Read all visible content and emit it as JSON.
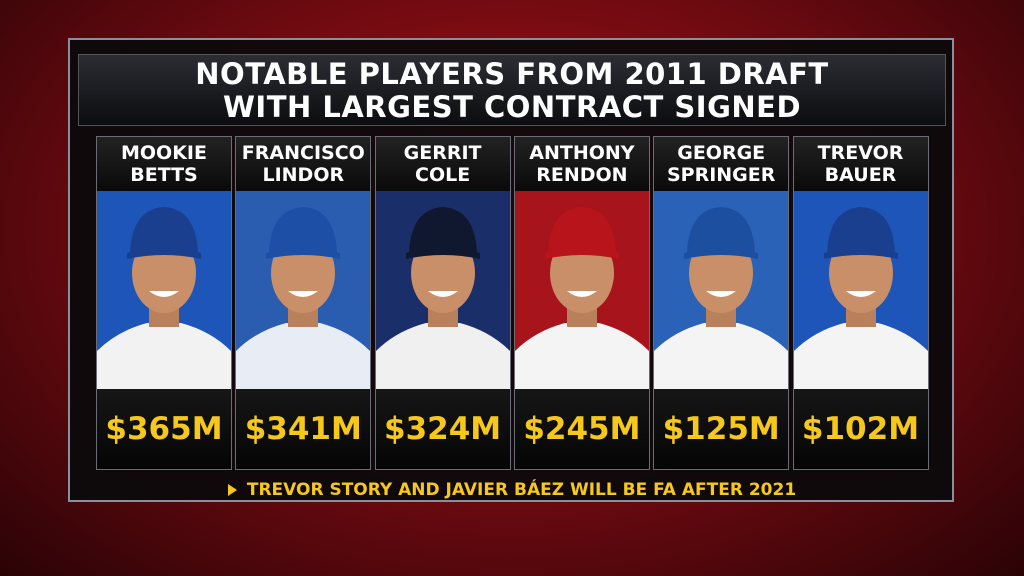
{
  "title": [
    "NOTABLE PLAYERS FROM 2011 DRAFT",
    "WITH LARGEST CONTRACT SIGNED"
  ],
  "players": [
    {
      "first": "MOOKIE",
      "last": "BETTS",
      "contract": "$365M"
    },
    {
      "first": "FRANCISCO",
      "last": "LINDOR",
      "contract": "$341M"
    },
    {
      "first": "GERRIT",
      "last": "COLE",
      "contract": "$324M"
    },
    {
      "first": "ANTHONY",
      "last": "RENDON",
      "contract": "$245M"
    },
    {
      "first": "GEORGE",
      "last": "SPRINGER",
      "contract": "$125M"
    },
    {
      "first": "TREVOR",
      "last": "BAUER",
      "contract": "$102M"
    }
  ],
  "footer": "TREVOR STORY AND JAVIER BÁEZ WILL BE FA AFTER 2021"
}
